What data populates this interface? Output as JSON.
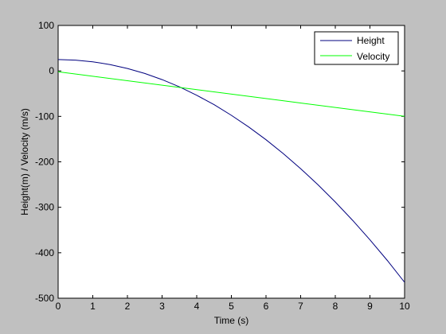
{
  "chart_data": {
    "type": "line",
    "title": "",
    "xlabel": "Time (s)",
    "ylabel": "Height(m) / Velocity (m/s)",
    "xlim": [
      0,
      10
    ],
    "ylim": [
      -500,
      100
    ],
    "xticks": [
      "0",
      "1",
      "2",
      "3",
      "4",
      "5",
      "6",
      "7",
      "8",
      "9",
      "10"
    ],
    "yticks": [
      "100",
      "0",
      "-100",
      "-200",
      "-300",
      "-400",
      "-500"
    ],
    "grid": false,
    "legend_position": "top-right",
    "series": [
      {
        "name": "Height",
        "color": "#00007f",
        "x": [
          0,
          0.5,
          1,
          1.5,
          2,
          2.5,
          3,
          3.5,
          4,
          4.5,
          5,
          5.5,
          6,
          6.5,
          7,
          7.5,
          8,
          8.5,
          9,
          9.5,
          10
        ],
        "y": [
          25,
          23.8,
          20.1,
          14,
          5.4,
          -5.7,
          -19.1,
          -35.1,
          -53.5,
          -74.3,
          -97.6,
          -123.3,
          -151.4,
          -182,
          -215,
          -250.5,
          -288.4,
          -328.8,
          -371.6,
          -416.9,
          -465
        ]
      },
      {
        "name": "Velocity",
        "color": "#00ff00",
        "x": [
          0,
          10
        ],
        "y": [
          -2,
          -100
        ]
      }
    ]
  }
}
